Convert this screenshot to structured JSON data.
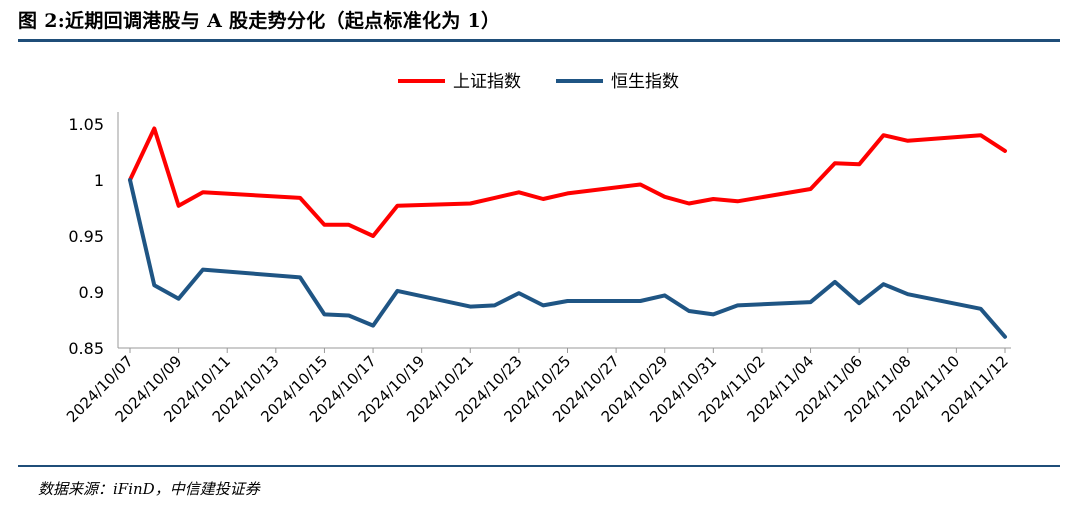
{
  "title": "图 2:近期回调港股与 A 股走势分化（起点标准化为 1）",
  "source": "数据来源：iFinD，中信建投证券",
  "chart_data": {
    "type": "line",
    "x_tick_labels": [
      "2024/10/07",
      "2024/10/09",
      "2024/10/11",
      "2024/10/13",
      "2024/10/15",
      "2024/10/17",
      "2024/10/19",
      "2024/10/21",
      "2024/10/23",
      "2024/10/25",
      "2024/10/27",
      "2024/10/29",
      "2024/10/31",
      "2024/11/02",
      "2024/11/04",
      "2024/11/06",
      "2024/11/08",
      "2024/11/10",
      "2024/11/12"
    ],
    "y_ticks": [
      "0.85",
      "0.9",
      "0.95",
      "1",
      "1.05"
    ],
    "ylim": [
      0.85,
      1.05
    ],
    "x": [
      "2024/10/07",
      "2024/10/08",
      "2024/10/09",
      "2024/10/10",
      "2024/10/14",
      "2024/10/15",
      "2024/10/16",
      "2024/10/17",
      "2024/10/18",
      "2024/10/21",
      "2024/10/22",
      "2024/10/23",
      "2024/10/24",
      "2024/10/25",
      "2024/10/28",
      "2024/10/29",
      "2024/10/30",
      "2024/10/31",
      "2024/11/01",
      "2024/11/04",
      "2024/11/05",
      "2024/11/06",
      "2024/11/07",
      "2024/11/08",
      "2024/11/11",
      "2024/11/12"
    ],
    "series": [
      {
        "name": "上证指数",
        "color": "#ff0000",
        "values": [
          1.0,
          1.046,
          0.977,
          0.989,
          0.984,
          0.96,
          0.96,
          0.95,
          0.977,
          0.979,
          0.984,
          0.989,
          0.983,
          0.988,
          0.996,
          0.985,
          0.979,
          0.983,
          0.981,
          0.992,
          1.015,
          1.014,
          1.04,
          1.035,
          1.04,
          1.026
        ]
      },
      {
        "name": "恒生指数",
        "color": "#1f5584",
        "values": [
          1.0,
          0.906,
          0.894,
          0.92,
          0.913,
          0.88,
          0.879,
          0.87,
          0.901,
          0.887,
          0.888,
          0.899,
          0.888,
          0.892,
          0.892,
          0.897,
          0.883,
          0.88,
          0.888,
          0.891,
          0.909,
          0.89,
          0.907,
          0.898,
          0.885,
          0.86
        ]
      }
    ],
    "legend_position": "top-center",
    "grid": false
  }
}
